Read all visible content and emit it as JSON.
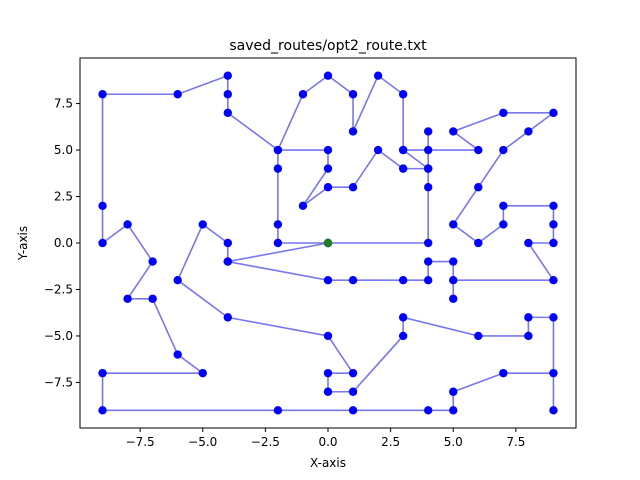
{
  "chart_data": {
    "type": "line",
    "title": "saved_routes/opt2_route.txt",
    "xlabel": "X-axis",
    "ylabel": "Y-axis",
    "xlim": [
      -9.9,
      9.9
    ],
    "ylim": [
      -9.95,
      9.95
    ],
    "xticks": [
      -7.5,
      -5.0,
      -2.5,
      0.0,
      2.5,
      5.0,
      7.5
    ],
    "xtick_labels": [
      "−7.5",
      "−5.0",
      "−2.5",
      "0.0",
      "2.5",
      "5.0",
      "7.5"
    ],
    "yticks": [
      -7.5,
      -5.0,
      -2.5,
      0.0,
      2.5,
      5.0,
      7.5
    ],
    "ytick_labels": [
      "−7.5",
      "−5.0",
      "−2.5",
      "0.0",
      "2.5",
      "5.0",
      "7.5"
    ],
    "grid": false,
    "line_color": "#7777ee",
    "point_color": "#0000ff",
    "start_color": "#1f7f1f",
    "start": [
      0,
      0
    ],
    "route": [
      [
        0,
        0
      ],
      [
        4,
        0
      ],
      [
        4,
        3
      ],
      [
        4,
        4
      ],
      [
        3,
        4
      ],
      [
        2,
        5
      ],
      [
        1,
        3
      ],
      [
        0,
        3
      ],
      [
        -1,
        2
      ],
      [
        0,
        4
      ],
      [
        0,
        5
      ],
      [
        -2,
        5
      ],
      [
        -2,
        4
      ],
      [
        -2,
        1
      ],
      [
        -2,
        0
      ],
      [
        0,
        0
      ],
      [
        -4,
        -1
      ],
      [
        0,
        -2
      ],
      [
        1,
        -2
      ],
      [
        3,
        -2
      ],
      [
        4,
        -2
      ],
      [
        4,
        -1
      ],
      [
        5,
        -1
      ],
      [
        5,
        -3
      ],
      [
        5,
        -2
      ],
      [
        9,
        -2
      ],
      [
        8,
        0
      ],
      [
        9,
        0
      ],
      [
        9,
        1
      ],
      [
        9,
        2
      ],
      [
        7,
        2
      ],
      [
        7,
        1
      ],
      [
        6,
        0
      ],
      [
        5,
        1
      ],
      [
        6,
        3
      ],
      [
        7,
        5
      ],
      [
        8,
        6
      ],
      [
        9,
        7
      ],
      [
        7,
        7
      ],
      [
        5,
        6
      ],
      [
        6,
        5
      ],
      [
        3,
        5
      ],
      [
        4,
        5
      ],
      [
        4,
        6
      ],
      [
        4,
        4
      ],
      [
        3,
        5
      ],
      [
        3,
        8
      ],
      [
        2,
        9
      ],
      [
        1,
        6
      ],
      [
        1,
        8
      ],
      [
        0,
        9
      ],
      [
        -1,
        8
      ],
      [
        -2,
        5
      ],
      [
        -4,
        7
      ],
      [
        -4,
        8
      ],
      [
        -4,
        9
      ],
      [
        -6,
        8
      ],
      [
        -9,
        8
      ],
      [
        -9,
        2
      ],
      [
        -9,
        0
      ],
      [
        -8,
        1
      ],
      [
        -7,
        -1
      ],
      [
        -8,
        -3
      ],
      [
        -7,
        -3
      ],
      [
        -6,
        -6
      ],
      [
        -5,
        -7
      ],
      [
        -9,
        -7
      ],
      [
        -9,
        -9
      ],
      [
        -2,
        -9
      ],
      [
        1,
        -9
      ],
      [
        4,
        -9
      ],
      [
        5,
        -9
      ],
      [
        5,
        -8
      ],
      [
        7,
        -7
      ],
      [
        9,
        -7
      ],
      [
        9,
        -9
      ],
      [
        9,
        -4
      ],
      [
        8,
        -4
      ],
      [
        8,
        -5
      ],
      [
        6,
        -5
      ],
      [
        3,
        -4
      ],
      [
        3,
        -5
      ],
      [
        1,
        -8
      ],
      [
        0,
        -8
      ],
      [
        0,
        -7
      ],
      [
        1,
        -7
      ],
      [
        0,
        -5
      ],
      [
        -4,
        -4
      ],
      [
        -6,
        -2
      ],
      [
        -5,
        1
      ],
      [
        -4,
        0
      ],
      [
        -4,
        -1
      ]
    ]
  }
}
